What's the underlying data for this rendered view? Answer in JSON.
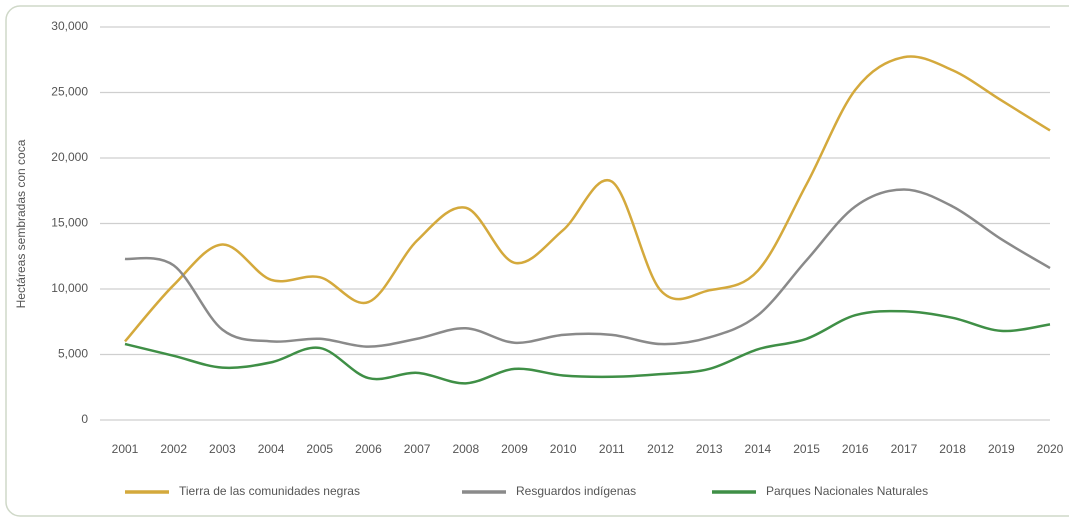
{
  "chart_data": {
    "type": "line",
    "y_label": "Hectáreas sembradas con coca",
    "categories": [
      "2001",
      "2002",
      "2003",
      "2004",
      "2005",
      "2006",
      "2007",
      "2008",
      "2009",
      "2010",
      "2011",
      "2012",
      "2013",
      "2014",
      "2015",
      "2016",
      "2017",
      "2018",
      "2019",
      "2020"
    ],
    "series": [
      {
        "name": "Tierra de las comunidades negras",
        "color": "#d4a93c",
        "values": [
          6000,
          10300,
          13400,
          10700,
          10900,
          9000,
          13700,
          16200,
          12000,
          14500,
          18200,
          9900,
          9900,
          11400,
          18000,
          25200,
          27700,
          26700,
          24400,
          22100
        ]
      },
      {
        "name": "Resguardos indígenas",
        "color": "#8a8a8a",
        "values": [
          12300,
          11800,
          6900,
          6000,
          6200,
          5600,
          6200,
          7000,
          5900,
          6500,
          6500,
          5800,
          6300,
          8000,
          12200,
          16300,
          17600,
          16300,
          13800,
          11600
        ]
      },
      {
        "name": "Parques Nacionales Naturales",
        "color": "#3f8f46",
        "values": [
          5800,
          4900,
          4000,
          4400,
          5500,
          3200,
          3600,
          2800,
          3900,
          3400,
          3300,
          3500,
          3900,
          5400,
          6200,
          8000,
          8300,
          7800,
          6800,
          7300
        ]
      }
    ],
    "ylim": [
      0,
      30000
    ],
    "yticks": [
      0,
      {
        "value": 5000,
        "label": "5,000"
      },
      {
        "value": 10000,
        "label": "10,000"
      },
      {
        "value": 15000,
        "label": "15,000"
      },
      {
        "value": 20000,
        "label": "20,000"
      },
      {
        "value": 25000,
        "label": "25,000"
      },
      {
        "value": 30000,
        "label": "30,000"
      }
    ],
    "grid": true,
    "legend": "bottom"
  }
}
